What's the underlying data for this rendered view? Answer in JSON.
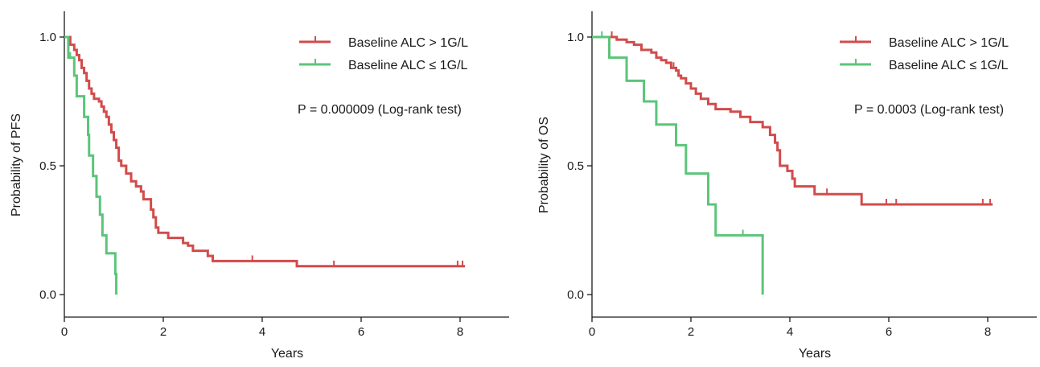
{
  "chart_data": [
    {
      "type": "line",
      "subtype": "kaplan-meier step curve",
      "ylabel": "Probability of PFS",
      "xlabel": "Years",
      "xlim": [
        0,
        9
      ],
      "ylim": [
        0,
        1.05
      ],
      "x_ticks": [
        "0",
        "2",
        "4",
        "6",
        "8"
      ],
      "y_ticks": [
        "0.0",
        "0.5",
        "1.0"
      ],
      "grid": false,
      "legend_position": "top-right",
      "annotation": "P = 0.000009 (Log-rank test)",
      "series": [
        {
          "name": "Baseline ALC > 1G/L",
          "color": "#d24b4b",
          "steps": [
            [
              0,
              1.0
            ],
            [
              0.12,
              0.97
            ],
            [
              0.2,
              0.95
            ],
            [
              0.25,
              0.93
            ],
            [
              0.3,
              0.91
            ],
            [
              0.35,
              0.88
            ],
            [
              0.4,
              0.86
            ],
            [
              0.45,
              0.83
            ],
            [
              0.5,
              0.8
            ],
            [
              0.55,
              0.78
            ],
            [
              0.6,
              0.76
            ],
            [
              0.7,
              0.75
            ],
            [
              0.75,
              0.73
            ],
            [
              0.8,
              0.71
            ],
            [
              0.85,
              0.69
            ],
            [
              0.9,
              0.66
            ],
            [
              0.95,
              0.63
            ],
            [
              1.0,
              0.6
            ],
            [
              1.05,
              0.57
            ],
            [
              1.1,
              0.52
            ],
            [
              1.15,
              0.5
            ],
            [
              1.25,
              0.47
            ],
            [
              1.35,
              0.44
            ],
            [
              1.45,
              0.42
            ],
            [
              1.55,
              0.4
            ],
            [
              1.6,
              0.37
            ],
            [
              1.75,
              0.33
            ],
            [
              1.8,
              0.3
            ],
            [
              1.85,
              0.26
            ],
            [
              1.9,
              0.24
            ],
            [
              2.1,
              0.22
            ],
            [
              2.4,
              0.2
            ],
            [
              2.5,
              0.19
            ],
            [
              2.6,
              0.17
            ],
            [
              2.9,
              0.15
            ],
            [
              3.0,
              0.13
            ],
            [
              4.7,
              0.11
            ],
            [
              8.1,
              0.11
            ]
          ],
          "censor_x": [
            3.8,
            4.7,
            5.45,
            7.95,
            8.05
          ]
        },
        {
          "name": "Baseline ALC ≤ 1G/L",
          "color": "#5cc47a",
          "steps": [
            [
              0,
              1.0
            ],
            [
              0.08,
              0.92
            ],
            [
              0.2,
              0.85
            ],
            [
              0.25,
              0.77
            ],
            [
              0.4,
              0.69
            ],
            [
              0.48,
              0.62
            ],
            [
              0.5,
              0.54
            ],
            [
              0.58,
              0.46
            ],
            [
              0.65,
              0.38
            ],
            [
              0.72,
              0.31
            ],
            [
              0.77,
              0.23
            ],
            [
              0.85,
              0.16
            ],
            [
              1.03,
              0.08
            ],
            [
              1.05,
              0.0
            ]
          ],
          "censor_x": [
            0.12
          ]
        }
      ]
    },
    {
      "type": "line",
      "subtype": "kaplan-meier step curve",
      "ylabel": "Probability of OS",
      "xlabel": "Years",
      "xlim": [
        0,
        9
      ],
      "ylim": [
        0,
        1.05
      ],
      "x_ticks": [
        "0",
        "2",
        "4",
        "6",
        "8"
      ],
      "y_ticks": [
        "0.0",
        "0.5",
        "1.0"
      ],
      "grid": false,
      "legend_position": "top-right",
      "annotation": "P = 0.0003 (Log-rank test)",
      "series": [
        {
          "name": "Baseline ALC > 1G/L",
          "color": "#d24b4b",
          "steps": [
            [
              0,
              1.0
            ],
            [
              0.5,
              0.99
            ],
            [
              0.7,
              0.98
            ],
            [
              0.85,
              0.97
            ],
            [
              1.0,
              0.95
            ],
            [
              1.2,
              0.94
            ],
            [
              1.3,
              0.92
            ],
            [
              1.4,
              0.91
            ],
            [
              1.5,
              0.9
            ],
            [
              1.6,
              0.88
            ],
            [
              1.7,
              0.87
            ],
            [
              1.75,
              0.85
            ],
            [
              1.8,
              0.84
            ],
            [
              1.9,
              0.82
            ],
            [
              2.0,
              0.8
            ],
            [
              2.1,
              0.78
            ],
            [
              2.2,
              0.76
            ],
            [
              2.35,
              0.74
            ],
            [
              2.5,
              0.72
            ],
            [
              2.8,
              0.71
            ],
            [
              3.0,
              0.69
            ],
            [
              3.2,
              0.67
            ],
            [
              3.45,
              0.65
            ],
            [
              3.6,
              0.62
            ],
            [
              3.7,
              0.59
            ],
            [
              3.75,
              0.56
            ],
            [
              3.8,
              0.5
            ],
            [
              3.95,
              0.48
            ],
            [
              4.05,
              0.45
            ],
            [
              4.1,
              0.42
            ],
            [
              4.5,
              0.39
            ],
            [
              5.45,
              0.35
            ],
            [
              8.1,
              0.35
            ]
          ],
          "censor_x": [
            0.4,
            1.65,
            4.75,
            5.95,
            6.15,
            7.9,
            8.05
          ]
        },
        {
          "name": "Baseline ALC ≤ 1G/L",
          "color": "#5cc47a",
          "steps": [
            [
              0,
              1.0
            ],
            [
              0.35,
              0.92
            ],
            [
              0.7,
              0.83
            ],
            [
              1.05,
              0.75
            ],
            [
              1.3,
              0.66
            ],
            [
              1.7,
              0.58
            ],
            [
              1.9,
              0.47
            ],
            [
              2.35,
              0.35
            ],
            [
              2.5,
              0.23
            ],
            [
              3.45,
              0.0
            ]
          ],
          "censor_x": [
            0.2,
            3.05
          ]
        }
      ]
    }
  ]
}
